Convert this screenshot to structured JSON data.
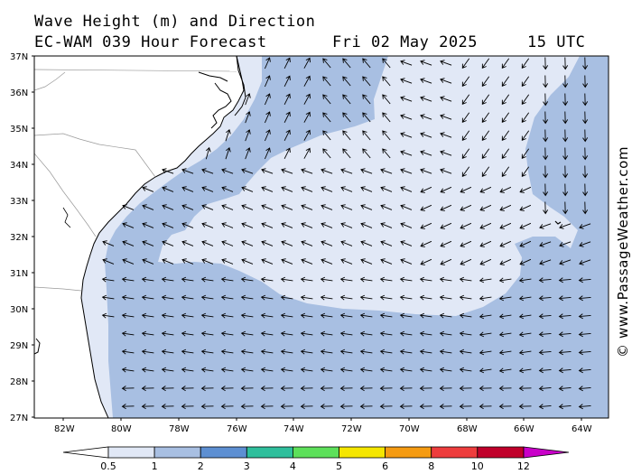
{
  "header": {
    "title_line1": "Wave Height (m) and Direction",
    "title_line2": "EC-WAM 039 Hour Forecast",
    "valid_date": "Fri 02 May 2025",
    "valid_time": "15 UTC"
  },
  "credit": "© www.PassageWeather.com",
  "map": {
    "latitude_labels": [
      "37N",
      "36N",
      "35N",
      "34N",
      "33N",
      "32N",
      "31N",
      "30N",
      "29N",
      "28N",
      "27N"
    ],
    "longitude_labels": [
      "82W",
      "80W",
      "78W",
      "76W",
      "74W",
      "72W",
      "70W",
      "68W",
      "66W",
      "64W"
    ],
    "wave_height_bands": [
      "0.5-1 m",
      "1-2 m"
    ],
    "colors": {
      "land": "#ffffff",
      "band_0_5_1": "#e1e8f6",
      "band_1_2": "#a8bfe2",
      "coastline": "#000000",
      "arrow": "#000000"
    },
    "arrow_direction_regions": [
      {
        "region": "Carolina coast north of 34N",
        "toward": "N / NNE"
      },
      {
        "region": "central basin",
        "toward": "W / WNW"
      },
      {
        "region": "east of 66W",
        "toward": "S / SSW"
      },
      {
        "region": "south of 31N",
        "toward": "W / WSW"
      }
    ]
  },
  "color_scale": {
    "labels": [
      "0.5",
      "1",
      "2",
      "3",
      "4",
      "5",
      "6",
      "8",
      "10",
      "12"
    ],
    "colors": [
      "#e1e8f6",
      "#a8bfe2",
      "#5d8fd2",
      "#2fbf9c",
      "#5de05a",
      "#f5e600",
      "#f59b12",
      "#ee3d3d",
      "#c0002a",
      "#c900c9"
    ]
  }
}
